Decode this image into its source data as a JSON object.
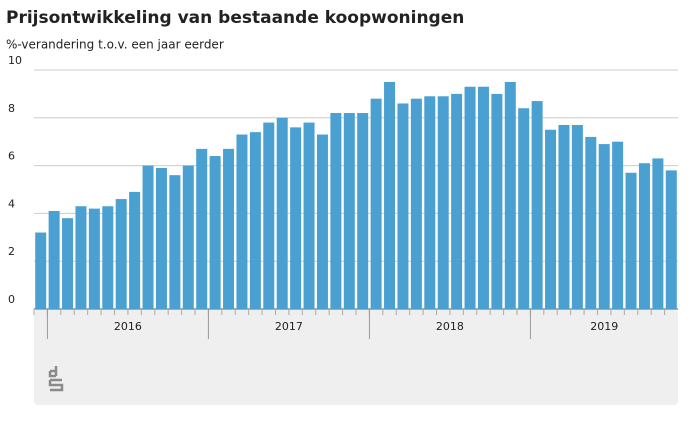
{
  "chart_data": {
    "type": "bar",
    "title": "Prijsontwikkeling van bestaande koopwoningen",
    "subtitle": "%-verandering t.o.v. een jaar eerder",
    "categories": [
      null,
      null,
      null,
      null,
      null,
      null,
      null,
      null,
      null,
      null,
      null,
      null,
      null,
      null,
      null,
      null,
      null,
      null,
      null,
      null,
      null,
      null,
      null,
      null,
      null,
      null,
      null,
      null,
      null,
      null,
      null,
      null,
      null,
      null,
      null,
      null,
      null,
      null,
      null,
      null,
      null,
      null,
      null,
      null,
      null,
      null,
      null,
      null
    ],
    "values": [
      3.2,
      4.1,
      3.8,
      4.3,
      4.2,
      4.3,
      4.6,
      4.9,
      6.0,
      5.9,
      5.6,
      6.0,
      6.7,
      6.4,
      6.7,
      7.3,
      7.4,
      7.8,
      8.0,
      7.6,
      7.8,
      7.3,
      8.2,
      8.2,
      8.2,
      8.8,
      9.5,
      8.6,
      8.8,
      8.9,
      8.9,
      9.0,
      9.3,
      9.3,
      9.0,
      9.5,
      8.4,
      8.7,
      7.5,
      7.7,
      7.7,
      7.2,
      6.9,
      7.0,
      5.7,
      6.1,
      6.3,
      5.8
    ],
    "years": [
      "2016",
      "2017",
      "2018",
      "2019"
    ],
    "color": "#4aa0d0",
    "ylim": [
      0,
      10
    ],
    "yticks": [
      0,
      2,
      4,
      6,
      8,
      10
    ],
    "grid": true
  }
}
